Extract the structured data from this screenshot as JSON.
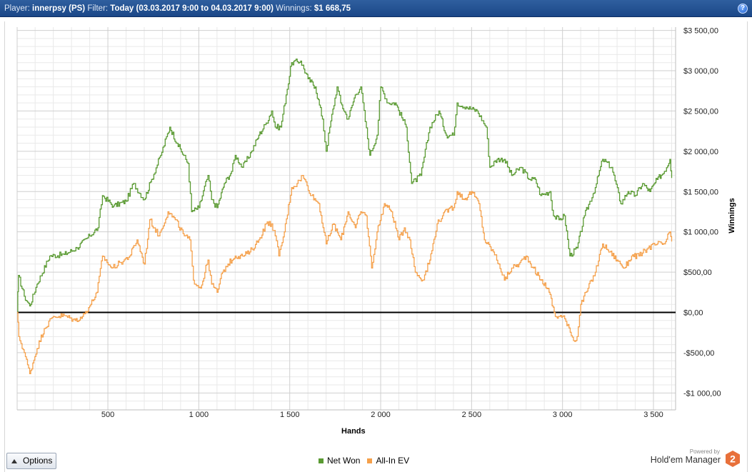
{
  "header": {
    "player_label": "Player:",
    "player_value": "innerpsy (PS)",
    "filter_label": "Filter:",
    "filter_value": "Today (03.03.2017 9:00 to 04.03.2017 9:00)",
    "winnings_label": "Winnings:",
    "winnings_value": "$1 668,75",
    "help_label": "?"
  },
  "options": {
    "label": "Options",
    "icon": "triangle-up-icon"
  },
  "branding": {
    "powered_by": "Powered by",
    "product": "Hold'em Manager",
    "logo_text": "2",
    "logo_color": "#e8703a"
  },
  "chart_data": {
    "type": "line",
    "xlabel": "Hands",
    "ylabel": "Winnings",
    "xlim": [
      1,
      3600
    ],
    "ylim": [
      -1100,
      3550
    ],
    "x_ticks": [
      500,
      1000,
      1500,
      2000,
      2500,
      3000,
      3500
    ],
    "x_tick_labels": [
      "500",
      "1 000",
      "1 500",
      "2 000",
      "2 500",
      "3 000",
      "3 500"
    ],
    "y_ticks": [
      3500,
      3000,
      2500,
      2000,
      1500,
      1000,
      500,
      0,
      -500,
      -1000
    ],
    "y_tick_labels": [
      "$3 500,00",
      "$3 000,00",
      "$2 500,00",
      "$2 000,00",
      "$1 500,00",
      "$1 000,00",
      "$500,00",
      "$0,00",
      "-$500,00",
      "-$1 000,00"
    ],
    "grid": true,
    "legend_position": "bottom",
    "series": [
      {
        "name": "Net Won",
        "color": "#5a9a32",
        "points": [
          [
            1,
            0
          ],
          [
            8,
            460
          ],
          [
            40,
            200
          ],
          [
            70,
            80
          ],
          [
            110,
            350
          ],
          [
            180,
            700
          ],
          [
            260,
            720
          ],
          [
            330,
            800
          ],
          [
            400,
            950
          ],
          [
            445,
            1050
          ],
          [
            470,
            1450
          ],
          [
            530,
            1320
          ],
          [
            600,
            1380
          ],
          [
            640,
            1600
          ],
          [
            700,
            1400
          ],
          [
            740,
            1650
          ],
          [
            790,
            1950
          ],
          [
            840,
            2300
          ],
          [
            880,
            2100
          ],
          [
            940,
            1850
          ],
          [
            960,
            1250
          ],
          [
            1000,
            1300
          ],
          [
            1050,
            1700
          ],
          [
            1070,
            1400
          ],
          [
            1100,
            1300
          ],
          [
            1140,
            1600
          ],
          [
            1180,
            1750
          ],
          [
            1200,
            1950
          ],
          [
            1240,
            1800
          ],
          [
            1290,
            2000
          ],
          [
            1330,
            2200
          ],
          [
            1370,
            2350
          ],
          [
            1400,
            2500
          ],
          [
            1420,
            2300
          ],
          [
            1450,
            2300
          ],
          [
            1480,
            2700
          ],
          [
            1510,
            3100
          ],
          [
            1560,
            3120
          ],
          [
            1600,
            2900
          ],
          [
            1640,
            2800
          ],
          [
            1680,
            2400
          ],
          [
            1700,
            2000
          ],
          [
            1720,
            2300
          ],
          [
            1760,
            2800
          ],
          [
            1780,
            2600
          ],
          [
            1820,
            2400
          ],
          [
            1860,
            2700
          ],
          [
            1890,
            2800
          ],
          [
            1940,
            1950
          ],
          [
            1980,
            2200
          ],
          [
            2000,
            2800
          ],
          [
            2040,
            2600
          ],
          [
            2080,
            2600
          ],
          [
            2140,
            2300
          ],
          [
            2170,
            1600
          ],
          [
            2220,
            1700
          ],
          [
            2270,
            2300
          ],
          [
            2320,
            2500
          ],
          [
            2360,
            2200
          ],
          [
            2400,
            2200
          ],
          [
            2420,
            2600
          ],
          [
            2470,
            2550
          ],
          [
            2530,
            2500
          ],
          [
            2580,
            2300
          ],
          [
            2600,
            1800
          ],
          [
            2640,
            1900
          ],
          [
            2680,
            1900
          ],
          [
            2720,
            1700
          ],
          [
            2770,
            1800
          ],
          [
            2820,
            1650
          ],
          [
            2850,
            1650
          ],
          [
            2880,
            1450
          ],
          [
            2930,
            1500
          ],
          [
            2950,
            1200
          ],
          [
            2980,
            1150
          ],
          [
            3010,
            1200
          ],
          [
            3040,
            700
          ],
          [
            3080,
            800
          ],
          [
            3120,
            1200
          ],
          [
            3180,
            1550
          ],
          [
            3220,
            1900
          ],
          [
            3270,
            1800
          ],
          [
            3320,
            1350
          ],
          [
            3360,
            1500
          ],
          [
            3400,
            1450
          ],
          [
            3440,
            1600
          ],
          [
            3480,
            1500
          ],
          [
            3520,
            1650
          ],
          [
            3560,
            1750
          ],
          [
            3590,
            1900
          ],
          [
            3600,
            1669
          ]
        ]
      },
      {
        "name": "All-In EV",
        "color": "#f5a04a",
        "points": [
          [
            1,
            0
          ],
          [
            10,
            -300
          ],
          [
            40,
            -500
          ],
          [
            70,
            -760
          ],
          [
            110,
            -450
          ],
          [
            150,
            -200
          ],
          [
            200,
            -50
          ],
          [
            260,
            -40
          ],
          [
            320,
            -100
          ],
          [
            360,
            -50
          ],
          [
            400,
            80
          ],
          [
            440,
            250
          ],
          [
            470,
            700
          ],
          [
            520,
            550
          ],
          [
            570,
            620
          ],
          [
            620,
            700
          ],
          [
            660,
            900
          ],
          [
            700,
            600
          ],
          [
            730,
            1150
          ],
          [
            780,
            950
          ],
          [
            830,
            1250
          ],
          [
            870,
            1150
          ],
          [
            920,
            950
          ],
          [
            950,
            900
          ],
          [
            970,
            400
          ],
          [
            1010,
            300
          ],
          [
            1050,
            650
          ],
          [
            1070,
            350
          ],
          [
            1100,
            250
          ],
          [
            1130,
            500
          ],
          [
            1160,
            600
          ],
          [
            1200,
            700
          ],
          [
            1240,
            700
          ],
          [
            1280,
            750
          ],
          [
            1330,
            900
          ],
          [
            1370,
            1100
          ],
          [
            1400,
            1100
          ],
          [
            1420,
            950
          ],
          [
            1440,
            700
          ],
          [
            1470,
            1000
          ],
          [
            1510,
            1550
          ],
          [
            1540,
            1600
          ],
          [
            1570,
            1700
          ],
          [
            1620,
            1450
          ],
          [
            1660,
            1350
          ],
          [
            1700,
            850
          ],
          [
            1740,
            1100
          ],
          [
            1780,
            900
          ],
          [
            1820,
            1250
          ],
          [
            1860,
            1050
          ],
          [
            1890,
            1250
          ],
          [
            1920,
            1200
          ],
          [
            1950,
            550
          ],
          [
            1980,
            1000
          ],
          [
            2020,
            1350
          ],
          [
            2060,
            1250
          ],
          [
            2100,
            900
          ],
          [
            2130,
            1050
          ],
          [
            2160,
            900
          ],
          [
            2190,
            500
          ],
          [
            2230,
            400
          ],
          [
            2270,
            650
          ],
          [
            2310,
            1100
          ],
          [
            2340,
            1200
          ],
          [
            2380,
            1300
          ],
          [
            2400,
            1300
          ],
          [
            2420,
            1500
          ],
          [
            2460,
            1400
          ],
          [
            2500,
            1500
          ],
          [
            2540,
            1350
          ],
          [
            2570,
            900
          ],
          [
            2620,
            750
          ],
          [
            2650,
            600
          ],
          [
            2680,
            400
          ],
          [
            2720,
            550
          ],
          [
            2760,
            600
          ],
          [
            2800,
            700
          ],
          [
            2840,
            550
          ],
          [
            2880,
            400
          ],
          [
            2920,
            300
          ],
          [
            2960,
            -50
          ],
          [
            3000,
            -50
          ],
          [
            3030,
            -150
          ],
          [
            3060,
            -350
          ],
          [
            3080,
            -300
          ],
          [
            3100,
            100
          ],
          [
            3140,
            300
          ],
          [
            3180,
            500
          ],
          [
            3220,
            850
          ],
          [
            3260,
            750
          ],
          [
            3300,
            650
          ],
          [
            3340,
            550
          ],
          [
            3380,
            700
          ],
          [
            3420,
            700
          ],
          [
            3470,
            800
          ],
          [
            3520,
            850
          ],
          [
            3560,
            850
          ],
          [
            3590,
            1000
          ],
          [
            3600,
            880
          ]
        ]
      }
    ]
  }
}
